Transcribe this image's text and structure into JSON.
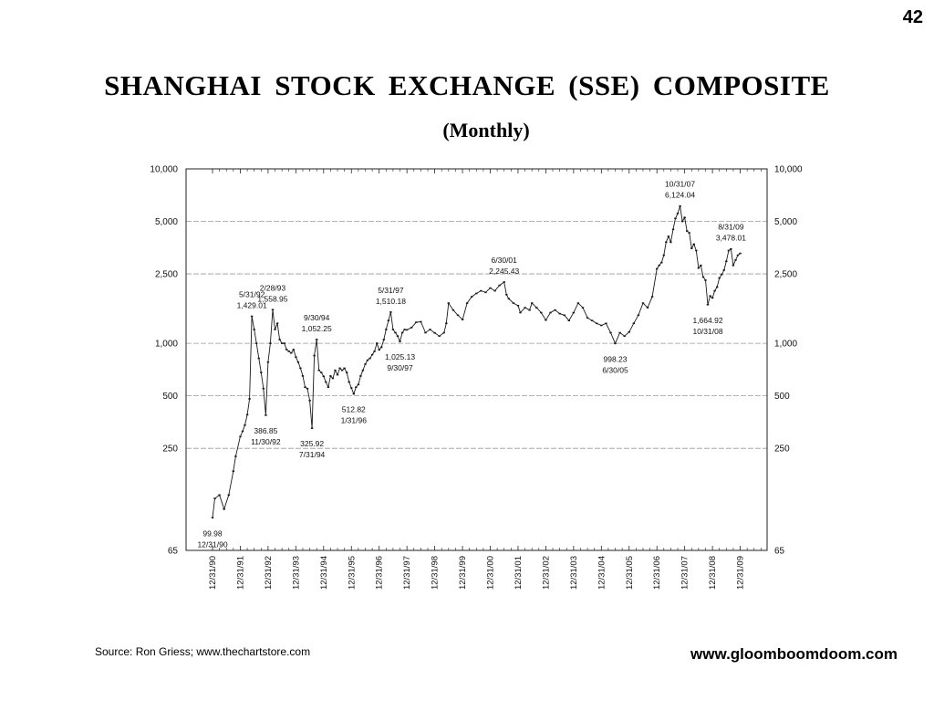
{
  "page_number": "42",
  "chart_data": {
    "type": "line",
    "title": "SHANGHAI  STOCK  EXCHANGE  (SSE)  COMPOSITE",
    "subtitle": "(Monthly)",
    "y_scale": "log",
    "ylim": [
      65,
      10000
    ],
    "y_ticks": [
      {
        "value": 10000,
        "label": "10,000"
      },
      {
        "value": 5000,
        "label": "5,000"
      },
      {
        "value": 2500,
        "label": "2,500"
      },
      {
        "value": 1000,
        "label": "1,000"
      },
      {
        "value": 500,
        "label": "500"
      },
      {
        "value": 250,
        "label": "250"
      },
      {
        "value": 65,
        "label": "65"
      }
    ],
    "grid": true,
    "x_ticks": [
      "12/31/90",
      "12/31/91",
      "12/31/92",
      "12/31/93",
      "12/31/94",
      "12/31/95",
      "12/31/96",
      "12/31/97",
      "12/31/98",
      "12/31/99",
      "12/31/00",
      "12/31/01",
      "12/31/02",
      "12/31/03",
      "12/31/04",
      "12/31/05",
      "12/31/06",
      "12/31/07",
      "12/31/08",
      "12/31/09"
    ],
    "xlim": [
      "1990-12",
      "2009-12"
    ],
    "series": [
      {
        "values": [
          {
            "x": "1990-12",
            "y": 100
          },
          {
            "x": "1991-01",
            "y": 129
          },
          {
            "x": "1991-03",
            "y": 135
          },
          {
            "x": "1991-05",
            "y": 112
          },
          {
            "x": "1991-07",
            "y": 135
          },
          {
            "x": "1991-09",
            "y": 185
          },
          {
            "x": "1991-10",
            "y": 225
          },
          {
            "x": "1991-12",
            "y": 292
          },
          {
            "x": "1992-01",
            "y": 313
          },
          {
            "x": "1992-02",
            "y": 340
          },
          {
            "x": "1992-03",
            "y": 390
          },
          {
            "x": "1992-04",
            "y": 480
          },
          {
            "x": "1992-05",
            "y": 1429
          },
          {
            "x": "1992-06",
            "y": 1200
          },
          {
            "x": "1992-07",
            "y": 1000
          },
          {
            "x": "1992-08",
            "y": 820
          },
          {
            "x": "1992-09",
            "y": 680
          },
          {
            "x": "1992-10",
            "y": 550
          },
          {
            "x": "1992-11",
            "y": 387
          },
          {
            "x": "1992-12",
            "y": 780
          },
          {
            "x": "1993-01",
            "y": 1000
          },
          {
            "x": "1993-02",
            "y": 1559
          },
          {
            "x": "1993-03",
            "y": 1200
          },
          {
            "x": "1993-04",
            "y": 1300
          },
          {
            "x": "1993-05",
            "y": 1050
          },
          {
            "x": "1993-06",
            "y": 1000
          },
          {
            "x": "1993-07",
            "y": 1000
          },
          {
            "x": "1993-08",
            "y": 920
          },
          {
            "x": "1993-09",
            "y": 900
          },
          {
            "x": "1993-10",
            "y": 880
          },
          {
            "x": "1993-11",
            "y": 920
          },
          {
            "x": "1993-12",
            "y": 833
          },
          {
            "x": "1994-01",
            "y": 780
          },
          {
            "x": "1994-02",
            "y": 720
          },
          {
            "x": "1994-03",
            "y": 650
          },
          {
            "x": "1994-04",
            "y": 560
          },
          {
            "x": "1994-05",
            "y": 550
          },
          {
            "x": "1994-06",
            "y": 470
          },
          {
            "x": "1994-07",
            "y": 326
          },
          {
            "x": "1994-08",
            "y": 850
          },
          {
            "x": "1994-09",
            "y": 1052
          },
          {
            "x": "1994-10",
            "y": 700
          },
          {
            "x": "1994-11",
            "y": 680
          },
          {
            "x": "1994-12",
            "y": 647
          },
          {
            "x": "1995-01",
            "y": 600
          },
          {
            "x": "1995-02",
            "y": 560
          },
          {
            "x": "1995-03",
            "y": 650
          },
          {
            "x": "1995-04",
            "y": 630
          },
          {
            "x": "1995-05",
            "y": 700
          },
          {
            "x": "1995-06",
            "y": 660
          },
          {
            "x": "1995-07",
            "y": 720
          },
          {
            "x": "1995-08",
            "y": 700
          },
          {
            "x": "1995-09",
            "y": 720
          },
          {
            "x": "1995-10",
            "y": 680
          },
          {
            "x": "1995-11",
            "y": 600
          },
          {
            "x": "1995-12",
            "y": 555
          },
          {
            "x": "1996-01",
            "y": 513
          },
          {
            "x": "1996-02",
            "y": 560
          },
          {
            "x": "1996-03",
            "y": 580
          },
          {
            "x": "1996-04",
            "y": 650
          },
          {
            "x": "1996-05",
            "y": 700
          },
          {
            "x": "1996-06",
            "y": 760
          },
          {
            "x": "1996-07",
            "y": 800
          },
          {
            "x": "1996-08",
            "y": 820
          },
          {
            "x": "1996-09",
            "y": 860
          },
          {
            "x": "1996-10",
            "y": 900
          },
          {
            "x": "1996-11",
            "y": 1000
          },
          {
            "x": "1996-12",
            "y": 917
          },
          {
            "x": "1997-01",
            "y": 950
          },
          {
            "x": "1997-02",
            "y": 1050
          },
          {
            "x": "1997-03",
            "y": 1200
          },
          {
            "x": "1997-04",
            "y": 1350
          },
          {
            "x": "1997-05",
            "y": 1510
          },
          {
            "x": "1997-06",
            "y": 1200
          },
          {
            "x": "1997-07",
            "y": 1150
          },
          {
            "x": "1997-08",
            "y": 1100
          },
          {
            "x": "1997-09",
            "y": 1025
          },
          {
            "x": "1997-10",
            "y": 1150
          },
          {
            "x": "1997-11",
            "y": 1200
          },
          {
            "x": "1997-12",
            "y": 1194
          },
          {
            "x": "1998-02",
            "y": 1230
          },
          {
            "x": "1998-04",
            "y": 1320
          },
          {
            "x": "1998-06",
            "y": 1330
          },
          {
            "x": "1998-08",
            "y": 1150
          },
          {
            "x": "1998-10",
            "y": 1200
          },
          {
            "x": "1998-12",
            "y": 1147
          },
          {
            "x": "1999-02",
            "y": 1100
          },
          {
            "x": "1999-04",
            "y": 1150
          },
          {
            "x": "1999-05",
            "y": 1300
          },
          {
            "x": "1999-06",
            "y": 1700
          },
          {
            "x": "1999-08",
            "y": 1550
          },
          {
            "x": "1999-10",
            "y": 1450
          },
          {
            "x": "1999-12",
            "y": 1367
          },
          {
            "x": "2000-02",
            "y": 1700
          },
          {
            "x": "2000-04",
            "y": 1850
          },
          {
            "x": "2000-06",
            "y": 1930
          },
          {
            "x": "2000-08",
            "y": 2000
          },
          {
            "x": "2000-10",
            "y": 1960
          },
          {
            "x": "2000-12",
            "y": 2073
          },
          {
            "x": "2001-02",
            "y": 2000
          },
          {
            "x": "2001-04",
            "y": 2150
          },
          {
            "x": "2001-06",
            "y": 2245
          },
          {
            "x": "2001-07",
            "y": 1900
          },
          {
            "x": "2001-08",
            "y": 1800
          },
          {
            "x": "2001-10",
            "y": 1700
          },
          {
            "x": "2001-12",
            "y": 1646
          },
          {
            "x": "2002-01",
            "y": 1500
          },
          {
            "x": "2002-03",
            "y": 1600
          },
          {
            "x": "2002-05",
            "y": 1550
          },
          {
            "x": "2002-06",
            "y": 1700
          },
          {
            "x": "2002-08",
            "y": 1600
          },
          {
            "x": "2002-10",
            "y": 1500
          },
          {
            "x": "2002-12",
            "y": 1358
          },
          {
            "x": "2003-02",
            "y": 1500
          },
          {
            "x": "2003-04",
            "y": 1550
          },
          {
            "x": "2003-06",
            "y": 1480
          },
          {
            "x": "2003-08",
            "y": 1450
          },
          {
            "x": "2003-10",
            "y": 1350
          },
          {
            "x": "2003-12",
            "y": 1497
          },
          {
            "x": "2004-02",
            "y": 1700
          },
          {
            "x": "2004-04",
            "y": 1600
          },
          {
            "x": "2004-06",
            "y": 1400
          },
          {
            "x": "2004-08",
            "y": 1350
          },
          {
            "x": "2004-10",
            "y": 1300
          },
          {
            "x": "2004-12",
            "y": 1266
          },
          {
            "x": "2005-02",
            "y": 1300
          },
          {
            "x": "2005-04",
            "y": 1150
          },
          {
            "x": "2005-06",
            "y": 998
          },
          {
            "x": "2005-08",
            "y": 1150
          },
          {
            "x": "2005-10",
            "y": 1100
          },
          {
            "x": "2005-12",
            "y": 1161
          },
          {
            "x": "2006-02",
            "y": 1300
          },
          {
            "x": "2006-04",
            "y": 1450
          },
          {
            "x": "2006-06",
            "y": 1700
          },
          {
            "x": "2006-08",
            "y": 1600
          },
          {
            "x": "2006-10",
            "y": 1850
          },
          {
            "x": "2006-12",
            "y": 2675
          },
          {
            "x": "2007-01",
            "y": 2800
          },
          {
            "x": "2007-02",
            "y": 2900
          },
          {
            "x": "2007-03",
            "y": 3200
          },
          {
            "x": "2007-04",
            "y": 3800
          },
          {
            "x": "2007-05",
            "y": 4100
          },
          {
            "x": "2007-06",
            "y": 3800
          },
          {
            "x": "2007-07",
            "y": 4500
          },
          {
            "x": "2007-08",
            "y": 5200
          },
          {
            "x": "2007-09",
            "y": 5550
          },
          {
            "x": "2007-10",
            "y": 6124
          },
          {
            "x": "2007-11",
            "y": 5000
          },
          {
            "x": "2007-12",
            "y": 5262
          },
          {
            "x": "2008-01",
            "y": 4400
          },
          {
            "x": "2008-02",
            "y": 4300
          },
          {
            "x": "2008-03",
            "y": 3500
          },
          {
            "x": "2008-04",
            "y": 3700
          },
          {
            "x": "2008-05",
            "y": 3400
          },
          {
            "x": "2008-06",
            "y": 2700
          },
          {
            "x": "2008-07",
            "y": 2800
          },
          {
            "x": "2008-08",
            "y": 2400
          },
          {
            "x": "2008-09",
            "y": 2300
          },
          {
            "x": "2008-10",
            "y": 1665
          },
          {
            "x": "2008-11",
            "y": 1870
          },
          {
            "x": "2008-12",
            "y": 1821
          },
          {
            "x": "2009-01",
            "y": 2000
          },
          {
            "x": "2009-02",
            "y": 2100
          },
          {
            "x": "2009-03",
            "y": 2370
          },
          {
            "x": "2009-04",
            "y": 2480
          },
          {
            "x": "2009-05",
            "y": 2630
          },
          {
            "x": "2009-06",
            "y": 2950
          },
          {
            "x": "2009-07",
            "y": 3400
          },
          {
            "x": "2009-08",
            "y": 3478
          },
          {
            "x": "2009-09",
            "y": 2800
          },
          {
            "x": "2009-10",
            "y": 3000
          },
          {
            "x": "2009-11",
            "y": 3200
          },
          {
            "x": "2009-12",
            "y": 3277
          }
        ]
      }
    ],
    "annotations": [
      {
        "date_label": "12/31/90",
        "value_label": "99.98",
        "x": "1990-12",
        "y": 99.98,
        "position": "below",
        "order": "value-first"
      },
      {
        "date_label": "5/31/92",
        "value_label": "1,429.01",
        "x": "1992-05",
        "y": 1429.01,
        "position": "above",
        "order": "date-first"
      },
      {
        "date_label": "2/28/93",
        "value_label": "1,558.95",
        "x": "1993-02",
        "y": 1558.95,
        "position": "above",
        "order": "date-first"
      },
      {
        "date_label": "11/30/92",
        "value_label": "386.85",
        "x": "1992-11",
        "y": 386.85,
        "position": "below",
        "order": "value-first"
      },
      {
        "date_label": "9/30/94",
        "value_label": "1,052.25",
        "x": "1994-09",
        "y": 1052.25,
        "position": "above",
        "order": "date-first"
      },
      {
        "date_label": "7/31/94",
        "value_label": "325.92",
        "x": "1994-07",
        "y": 325.92,
        "position": "below",
        "order": "value-first"
      },
      {
        "date_label": "1/31/96",
        "value_label": "512.82",
        "x": "1996-01",
        "y": 512.82,
        "position": "below",
        "order": "value-first"
      },
      {
        "date_label": "5/31/97",
        "value_label": "1,510.18",
        "x": "1997-05",
        "y": 1510.18,
        "position": "above",
        "order": "date-first"
      },
      {
        "date_label": "9/30/97",
        "value_label": "1,025.13",
        "x": "1997-09",
        "y": 1025.13,
        "position": "below",
        "order": "value-first"
      },
      {
        "date_label": "6/30/01",
        "value_label": "2,245.43",
        "x": "2001-06",
        "y": 2245.43,
        "position": "above",
        "order": "date-first"
      },
      {
        "date_label": "6/30/05",
        "value_label": "998.23",
        "x": "2005-06",
        "y": 998.23,
        "position": "below",
        "order": "value-first"
      },
      {
        "date_label": "10/31/07",
        "value_label": "6,124.04",
        "x": "2007-10",
        "y": 6124.04,
        "position": "above",
        "order": "date-first"
      },
      {
        "date_label": "8/31/09",
        "value_label": "3,478.01",
        "x": "2009-08",
        "y": 3478.01,
        "position": "above",
        "order": "date-first"
      },
      {
        "date_label": "10/31/08",
        "value_label": "1,664.92",
        "x": "2008-10",
        "y": 1664.92,
        "position": "below",
        "order": "value-first"
      }
    ],
    "colors": {
      "line": "#1a1a1a",
      "grid": "#9a9a9a",
      "frame": "#222222"
    }
  },
  "footer": {
    "source": "Source:  Ron Griess; www.thechartstore.com",
    "website": "www.gloomboomdoom.com"
  }
}
